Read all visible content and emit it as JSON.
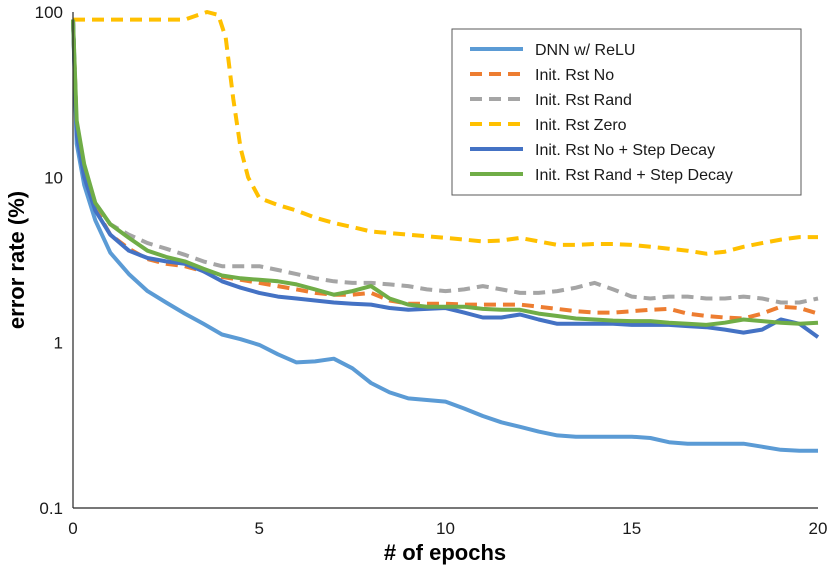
{
  "chart_data": {
    "type": "line",
    "xlabel": "# of epochs",
    "ylabel": "error rate (%)",
    "xlim": [
      0,
      20
    ],
    "ylim": [
      0.1,
      100
    ],
    "yscale": "log",
    "x_ticks": [
      "0",
      "5",
      "10",
      "15",
      "20"
    ],
    "y_ticks": [
      "0.1",
      "1",
      "10",
      "100"
    ],
    "grid": false,
    "legend_position": "top-right",
    "series": [
      {
        "name": "DNN w/ ReLU",
        "color": "#5B9BD5",
        "dash": "solid",
        "x": [
          0,
          0.1,
          0.3,
          0.6,
          1,
          1.5,
          2,
          2.5,
          3,
          3.5,
          4,
          4.5,
          5,
          5.5,
          6,
          6.5,
          7,
          7.5,
          8,
          8.5,
          9,
          9.5,
          10,
          10.5,
          11,
          11.5,
          12,
          12.5,
          13,
          13.5,
          14,
          14.5,
          15,
          15.5,
          16,
          16.5,
          17,
          17.5,
          18,
          18.5,
          19,
          19.5,
          20
        ],
        "y": [
          90,
          16,
          9,
          5.5,
          3.5,
          2.6,
          2.05,
          1.75,
          1.5,
          1.3,
          1.12,
          1.05,
          0.97,
          0.85,
          0.76,
          0.77,
          0.8,
          0.7,
          0.57,
          0.5,
          0.46,
          0.45,
          0.44,
          0.4,
          0.36,
          0.33,
          0.31,
          0.29,
          0.275,
          0.27,
          0.27,
          0.27,
          0.27,
          0.265,
          0.25,
          0.245,
          0.245,
          0.245,
          0.245,
          0.235,
          0.225,
          0.222,
          0.222
        ]
      },
      {
        "name": "Init. Rst No",
        "color": "#ED7D31",
        "dash": "dash",
        "x": [
          0,
          0.1,
          0.3,
          0.6,
          1,
          1.5,
          2,
          2.5,
          3,
          3.5,
          4,
          4.5,
          5,
          5.5,
          6,
          6.5,
          7,
          7.5,
          8,
          8.5,
          9,
          9.5,
          10,
          10.5,
          11,
          11.5,
          12,
          12.5,
          13,
          13.5,
          14,
          14.5,
          15,
          15.5,
          16,
          16.5,
          17,
          17.5,
          18,
          18.5,
          19,
          19.5,
          20
        ],
        "y": [
          90,
          20,
          11,
          6.5,
          4.5,
          3.7,
          3.2,
          3.0,
          2.9,
          2.7,
          2.5,
          2.4,
          2.3,
          2.2,
          2.1,
          2.0,
          1.95,
          1.95,
          2.0,
          1.8,
          1.72,
          1.72,
          1.72,
          1.7,
          1.7,
          1.7,
          1.7,
          1.65,
          1.6,
          1.55,
          1.52,
          1.52,
          1.55,
          1.58,
          1.6,
          1.5,
          1.45,
          1.42,
          1.4,
          1.5,
          1.65,
          1.62,
          1.5
        ]
      },
      {
        "name": "Init. Rst Rand",
        "color": "#A5A5A5",
        "dash": "dash",
        "x": [
          0,
          0.1,
          0.3,
          0.6,
          1,
          1.5,
          2,
          2.5,
          3,
          3.5,
          4,
          4.5,
          5,
          5.5,
          6,
          6.5,
          7,
          7.5,
          8,
          8.5,
          9,
          9.5,
          10,
          10.5,
          11,
          11.5,
          12,
          12.5,
          13,
          13.5,
          14,
          14.5,
          15,
          15.5,
          16,
          16.5,
          17,
          17.5,
          18,
          18.5,
          19,
          19.5,
          20
        ],
        "y": [
          90,
          20,
          11,
          7,
          5.2,
          4.5,
          4.0,
          3.7,
          3.4,
          3.1,
          2.9,
          2.9,
          2.9,
          2.75,
          2.6,
          2.45,
          2.35,
          2.3,
          2.3,
          2.25,
          2.2,
          2.1,
          2.05,
          2.1,
          2.2,
          2.1,
          2.0,
          2.0,
          2.05,
          2.15,
          2.3,
          2.1,
          1.9,
          1.85,
          1.9,
          1.9,
          1.85,
          1.85,
          1.9,
          1.85,
          1.75,
          1.75,
          1.85
        ]
      },
      {
        "name": "Init. Rst Zero",
        "color": "#FFC000",
        "dash": "dash",
        "x": [
          0,
          0.5,
          1,
          1.5,
          2,
          2.5,
          3,
          3.3,
          3.6,
          3.9,
          4.1,
          4.3,
          4.5,
          4.7,
          5,
          5.5,
          6,
          6.5,
          7,
          7.5,
          8,
          8.5,
          9,
          9.5,
          10,
          10.5,
          11,
          11.5,
          12,
          12.5,
          13,
          13.5,
          14,
          14.5,
          15,
          15.5,
          16,
          16.5,
          17,
          17.5,
          18,
          18.5,
          19,
          19.5,
          20
        ],
        "y": [
          90,
          90,
          90,
          90,
          90,
          90,
          90,
          95,
          100,
          96,
          70,
          30,
          15,
          10,
          7.5,
          6.8,
          6.3,
          5.7,
          5.3,
          5.0,
          4.7,
          4.6,
          4.5,
          4.4,
          4.3,
          4.2,
          4.1,
          4.15,
          4.3,
          4.1,
          3.9,
          3.9,
          3.95,
          3.95,
          3.9,
          3.8,
          3.7,
          3.6,
          3.45,
          3.55,
          3.8,
          4.0,
          4.2,
          4.35,
          4.35
        ]
      },
      {
        "name": "Init. Rst No + Step Decay",
        "color": "#4472C4",
        "dash": "solid",
        "x": [
          0,
          0.1,
          0.3,
          0.6,
          1,
          1.5,
          2,
          2.5,
          3,
          3.5,
          4,
          4.5,
          5,
          5.5,
          6,
          6.5,
          7,
          7.5,
          8,
          8.5,
          9,
          9.5,
          10,
          10.5,
          11,
          11.5,
          12,
          12.5,
          13,
          13.5,
          14,
          14.5,
          15,
          15.5,
          16,
          16.5,
          17,
          17.5,
          18,
          18.5,
          19,
          19.5,
          20
        ],
        "y": [
          90,
          18,
          10,
          6.3,
          4.5,
          3.6,
          3.25,
          3.1,
          3.0,
          2.7,
          2.35,
          2.15,
          2.0,
          1.9,
          1.85,
          1.8,
          1.75,
          1.72,
          1.7,
          1.62,
          1.58,
          1.6,
          1.62,
          1.52,
          1.42,
          1.42,
          1.48,
          1.38,
          1.3,
          1.3,
          1.3,
          1.3,
          1.28,
          1.28,
          1.28,
          1.26,
          1.24,
          1.2,
          1.15,
          1.2,
          1.38,
          1.3,
          1.08
        ]
      },
      {
        "name": "Init. Rst Rand + Step Decay",
        "color": "#70AD47",
        "dash": "solid",
        "x": [
          0,
          0.1,
          0.3,
          0.6,
          1,
          1.5,
          2,
          2.5,
          3,
          3.5,
          4,
          4.5,
          5,
          5.5,
          6,
          6.5,
          7,
          7.5,
          8,
          8.5,
          9,
          9.5,
          10,
          10.5,
          11,
          11.5,
          12,
          12.5,
          13,
          13.5,
          14,
          14.5,
          15,
          15.5,
          16,
          16.5,
          17,
          17.5,
          18,
          18.5,
          19,
          19.5,
          20
        ],
        "y": [
          90,
          22,
          12,
          7,
          5.2,
          4.3,
          3.6,
          3.3,
          3.1,
          2.8,
          2.55,
          2.45,
          2.4,
          2.35,
          2.25,
          2.1,
          1.95,
          2.05,
          2.2,
          1.85,
          1.7,
          1.65,
          1.65,
          1.65,
          1.6,
          1.58,
          1.58,
          1.5,
          1.45,
          1.4,
          1.38,
          1.36,
          1.35,
          1.35,
          1.32,
          1.3,
          1.28,
          1.32,
          1.38,
          1.35,
          1.32,
          1.3,
          1.32
        ]
      }
    ]
  }
}
